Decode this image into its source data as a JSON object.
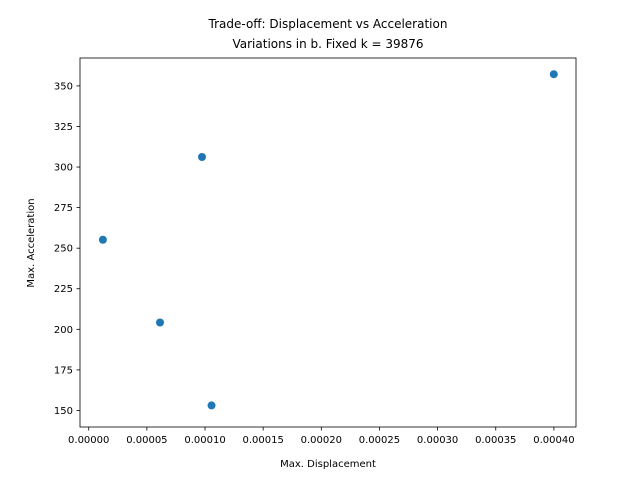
{
  "chart_data": {
    "type": "scatter",
    "title": "Trade-off: Displacement vs Acceleration",
    "subtitle": "Variations in b. Fixed k = 39876",
    "xlabel": "Max. Displacement",
    "ylabel": "Max. Acceleration",
    "xlim": [
      -7.5e-06,
      0.000419
    ],
    "ylim": [
      139.8,
      367.2
    ],
    "x_ticks": [
      0.0,
      5e-05,
      0.0001,
      0.00015,
      0.0002,
      0.00025,
      0.0003,
      0.00035,
      0.0004
    ],
    "x_tick_labels": [
      "0.00000",
      "0.00005",
      "0.00010",
      "0.00015",
      "0.00020",
      "0.00025",
      "0.00030",
      "0.00035",
      "0.00040"
    ],
    "y_ticks": [
      150,
      175,
      200,
      225,
      250,
      275,
      300,
      325,
      350
    ],
    "y_tick_labels": [
      "150",
      "175",
      "200",
      "225",
      "250",
      "275",
      "300",
      "325",
      "350"
    ],
    "grid": false,
    "color": "#1f77b4",
    "points": [
      {
        "x": 1.22e-05,
        "y": 255.2
      },
      {
        "x": 6.13e-05,
        "y": 204.2
      },
      {
        "x": 9.74e-05,
        "y": 306.2
      },
      {
        "x": 0.0001056,
        "y": 153.1
      },
      {
        "x": 0.0003999,
        "y": 357.2
      }
    ]
  }
}
